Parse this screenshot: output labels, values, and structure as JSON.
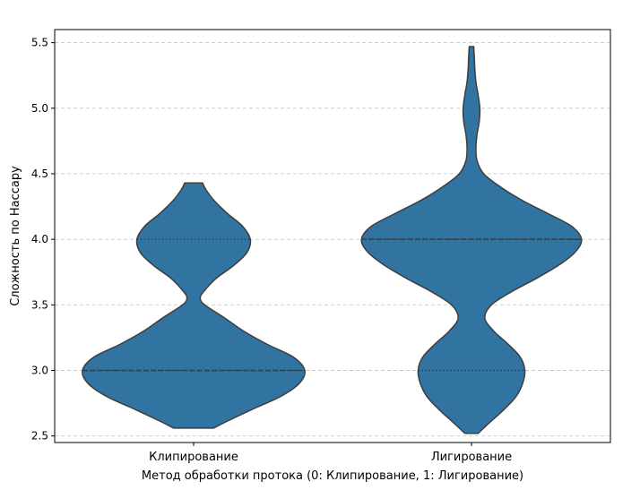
{
  "chart_data": {
    "type": "violin",
    "categories": [
      "Клипирование",
      "Лигирование"
    ],
    "xlabel": "Метод обработки протока (0: Клипирование, 1: Лигирование)",
    "ylabel": "Сложность по Нассару",
    "ylim": [
      2.45,
      5.6
    ],
    "yticks": [
      "2.5",
      "3.0",
      "3.5",
      "4.0",
      "4.5",
      "5.0",
      "5.5"
    ],
    "grid": "y, dashed",
    "color": "#3274a1",
    "edge_color": "#3d3d3d",
    "series": [
      {
        "category": "Клипирование",
        "range": [
          2.56,
          4.43
        ],
        "median": 3.0,
        "quartiles": [
          3.0,
          4.0
        ],
        "density": [
          [
            2.56,
            0.18
          ],
          [
            2.62,
            0.32
          ],
          [
            2.7,
            0.52
          ],
          [
            2.8,
            0.78
          ],
          [
            2.9,
            0.95
          ],
          [
            3.0,
            1.0
          ],
          [
            3.1,
            0.9
          ],
          [
            3.2,
            0.66
          ],
          [
            3.3,
            0.45
          ],
          [
            3.4,
            0.28
          ],
          [
            3.5,
            0.1
          ],
          [
            3.55,
            0.06
          ],
          [
            3.6,
            0.09
          ],
          [
            3.7,
            0.2
          ],
          [
            3.8,
            0.36
          ],
          [
            3.9,
            0.48
          ],
          [
            4.0,
            0.51
          ],
          [
            4.1,
            0.44
          ],
          [
            4.2,
            0.3
          ],
          [
            4.3,
            0.18
          ],
          [
            4.38,
            0.11
          ],
          [
            4.43,
            0.08
          ]
        ]
      },
      {
        "category": "Лигирование",
        "range": [
          2.52,
          5.47
        ],
        "median": 4.0,
        "quartiles": [
          3.0,
          4.0
        ],
        "density": [
          [
            2.52,
            0.06
          ],
          [
            2.6,
            0.16
          ],
          [
            2.7,
            0.29
          ],
          [
            2.8,
            0.4
          ],
          [
            2.9,
            0.46
          ],
          [
            3.0,
            0.48
          ],
          [
            3.1,
            0.44
          ],
          [
            3.2,
            0.33
          ],
          [
            3.3,
            0.2
          ],
          [
            3.4,
            0.12
          ],
          [
            3.5,
            0.18
          ],
          [
            3.6,
            0.36
          ],
          [
            3.7,
            0.58
          ],
          [
            3.8,
            0.78
          ],
          [
            3.9,
            0.93
          ],
          [
            4.0,
            0.99
          ],
          [
            4.1,
            0.9
          ],
          [
            4.2,
            0.68
          ],
          [
            4.3,
            0.45
          ],
          [
            4.4,
            0.26
          ],
          [
            4.5,
            0.11
          ],
          [
            4.6,
            0.05
          ],
          [
            4.7,
            0.04
          ],
          [
            4.8,
            0.05
          ],
          [
            4.9,
            0.07
          ],
          [
            5.0,
            0.075
          ],
          [
            5.1,
            0.06
          ],
          [
            5.2,
            0.04
          ],
          [
            5.3,
            0.03
          ],
          [
            5.4,
            0.025
          ],
          [
            5.47,
            0.02
          ]
        ]
      }
    ]
  }
}
